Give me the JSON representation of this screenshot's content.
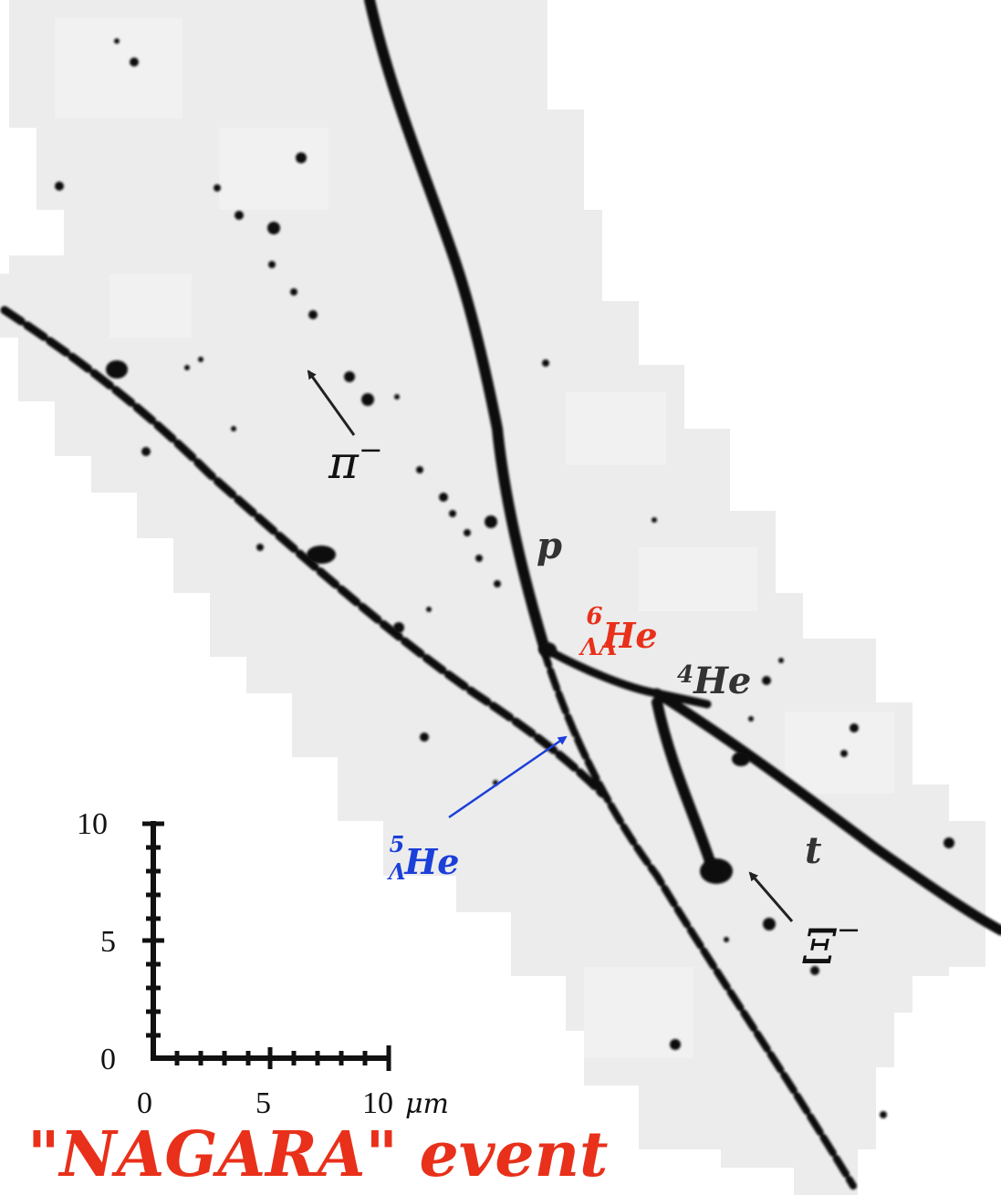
{
  "labels": {
    "pion": {
      "base": "π",
      "sup": "−"
    },
    "proton": "p",
    "double_lambda": {
      "pre": "ΛΛ",
      "presup": "6",
      "main": "He"
    },
    "helium4": {
      "presup": "4",
      "main": "He"
    },
    "lambda5": {
      "pre": "Λ",
      "presup": "5",
      "main": "He"
    },
    "triton": "t",
    "xi": {
      "base": "Ξ",
      "sup": "−"
    }
  },
  "scale_bar": {
    "y_ticks": [
      "10",
      "5",
      "0"
    ],
    "x_ticks": [
      "0",
      "5",
      "10"
    ],
    "unit": "μm"
  },
  "title": "\"NAGARA\" event",
  "colors": {
    "title": "#e8301a",
    "double_lambda_label": "#e8301a",
    "lambda5_label": "#1b3fd9",
    "lambda5_arrow": "#1b3fd9",
    "labels": "#333333",
    "tracks": "#0a0a0a",
    "emulsion_background": "#ececec"
  }
}
